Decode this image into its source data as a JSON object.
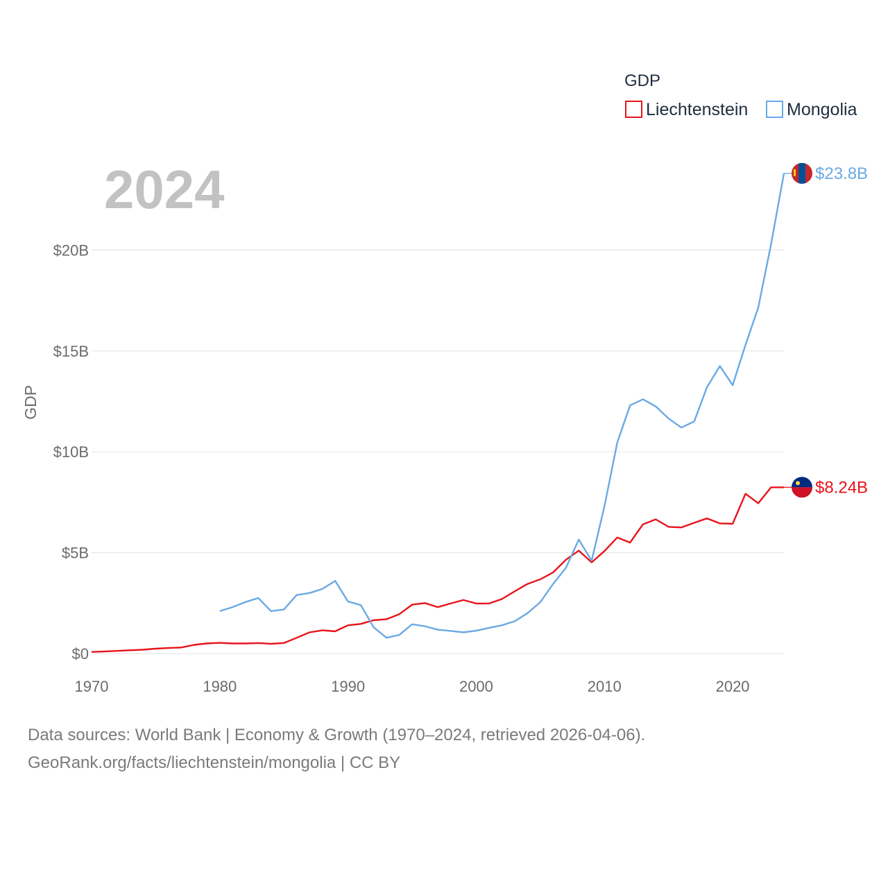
{
  "chart_data": {
    "type": "line",
    "year_watermark": "2024",
    "ylabel": "GDP",
    "legend": {
      "title": "GDP",
      "placement": "top-right"
    },
    "x_ticks": [
      1970,
      1980,
      1990,
      2000,
      2010,
      2020
    ],
    "y_ticks": [
      {
        "value": 0,
        "label": "$0"
      },
      {
        "value": 5,
        "label": "$5B"
      },
      {
        "value": 10,
        "label": "$10B"
      },
      {
        "value": 15,
        "label": "$15B"
      },
      {
        "value": 20,
        "label": "$20B"
      }
    ],
    "xlim": [
      1970,
      2024
    ],
    "ylim": [
      0,
      25
    ],
    "units": "billions USD",
    "series": [
      {
        "name": "Liechtenstein",
        "color": "#e8131a",
        "end_label": "$8.24B",
        "flag": "liechtenstein-flag",
        "x": [
          1970,
          1971,
          1972,
          1973,
          1974,
          1975,
          1976,
          1977,
          1978,
          1979,
          1980,
          1981,
          1982,
          1983,
          1984,
          1985,
          1986,
          1987,
          1988,
          1989,
          1990,
          1991,
          1992,
          1993,
          1994,
          1995,
          1996,
          1997,
          1998,
          1999,
          2000,
          2001,
          2002,
          2003,
          2004,
          2005,
          2006,
          2007,
          2008,
          2009,
          2010,
          2011,
          2012,
          2013,
          2014,
          2015,
          2016,
          2017,
          2018,
          2019,
          2020,
          2021,
          2022,
          2023,
          2024
        ],
        "values": [
          0.08,
          0.1,
          0.13,
          0.16,
          0.19,
          0.24,
          0.27,
          0.3,
          0.43,
          0.5,
          0.53,
          0.5,
          0.5,
          0.52,
          0.48,
          0.52,
          0.78,
          1.05,
          1.15,
          1.1,
          1.4,
          1.47,
          1.65,
          1.7,
          1.95,
          2.42,
          2.5,
          2.3,
          2.48,
          2.65,
          2.48,
          2.48,
          2.7,
          3.08,
          3.45,
          3.68,
          4.02,
          4.65,
          5.1,
          4.52,
          5.08,
          5.75,
          5.5,
          6.4,
          6.65,
          6.28,
          6.25,
          6.48,
          6.7,
          6.45,
          6.43,
          7.92,
          7.45,
          8.24,
          8.24
        ]
      },
      {
        "name": "Mongolia",
        "color": "#6aa9e4",
        "end_label": "$23.8B",
        "flag": "mongolia-flag",
        "x": [
          1980,
          1981,
          1982,
          1983,
          1984,
          1985,
          1986,
          1987,
          1988,
          1989,
          1990,
          1991,
          1992,
          1993,
          1994,
          1995,
          1996,
          1997,
          1998,
          1999,
          2000,
          2001,
          2002,
          2003,
          2004,
          2005,
          2006,
          2007,
          2008,
          2009,
          2010,
          2011,
          2012,
          2013,
          2014,
          2015,
          2016,
          2017,
          2018,
          2019,
          2020,
          2021,
          2022,
          2023,
          2024
        ],
        "values": [
          2.1,
          2.3,
          2.55,
          2.75,
          2.1,
          2.18,
          2.9,
          3.0,
          3.2,
          3.6,
          2.58,
          2.4,
          1.3,
          0.78,
          0.92,
          1.45,
          1.35,
          1.18,
          1.12,
          1.05,
          1.13,
          1.27,
          1.4,
          1.6,
          2.0,
          2.55,
          3.45,
          4.25,
          5.65,
          4.6,
          7.3,
          10.45,
          12.3,
          12.6,
          12.25,
          11.65,
          11.2,
          11.5,
          13.2,
          14.25,
          13.3,
          15.3,
          17.15,
          20.3,
          23.8
        ]
      }
    ]
  },
  "footer": {
    "line1": "Data sources: World Bank | Economy & Growth (1970–2024, retrieved 2026-04-06).",
    "line2": "GeoRank.org/facts/liechtenstein/mongolia | CC BY"
  }
}
